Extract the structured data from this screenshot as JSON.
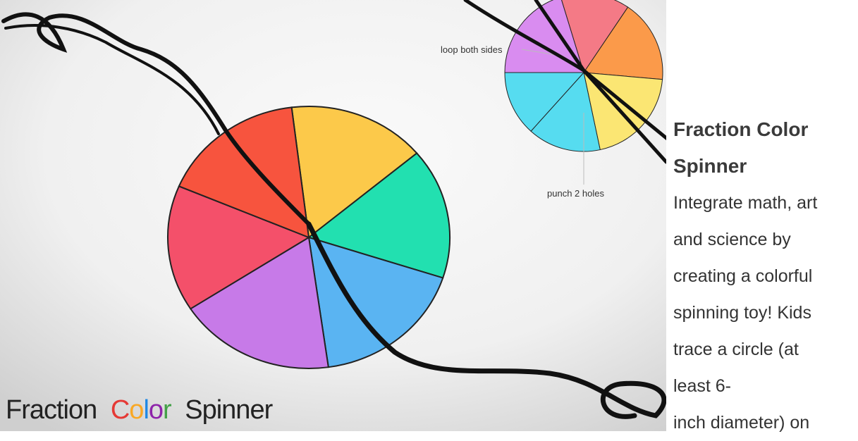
{
  "image": {
    "labels": [
      "loop both sides",
      "punch 2 holes"
    ],
    "caption": {
      "first": "Fraction",
      "colored": [
        "C",
        "o",
        "l",
        "o",
        "r"
      ],
      "last": "Spinner"
    }
  },
  "card": {
    "title_lines": [
      "Fraction Color",
      "Spinner"
    ],
    "text_lines": [
      "Integrate math, art",
      "and science by",
      "creating a colorful",
      "spinning toy! Kids",
      "trace a circle (at",
      "least 6-",
      "inch diameter) on"
    ]
  }
}
